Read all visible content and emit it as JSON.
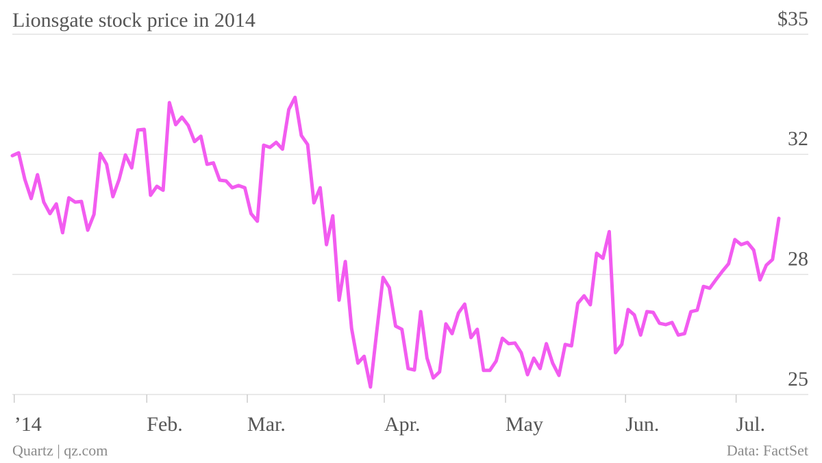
{
  "chart_data": {
    "type": "line",
    "title": "Lionsgate stock price in 2014",
    "source_left": "Quartz | qz.com",
    "source_right": "Data: FactSet",
    "color": "#f25cf0",
    "grid": true,
    "ylim": [
      25,
      35
    ],
    "yticks": [
      25,
      {
        "value": 28.333,
        "label": "28"
      },
      {
        "value": 31.667,
        "label": "32"
      },
      {
        "value": 35,
        "label": "$35"
      }
    ],
    "xlim": [
      0,
      122
    ],
    "xticks": [
      {
        "value": 0.3,
        "label": "’14"
      },
      {
        "value": 21.4,
        "label": "Feb."
      },
      {
        "value": 37.4,
        "label": "Mar."
      },
      {
        "value": 59.2,
        "label": "Apr."
      },
      {
        "value": 78.5,
        "label": "May"
      },
      {
        "value": 97.6,
        "label": "Jun."
      },
      {
        "value": 115.2,
        "label": "Jul."
      }
    ],
    "values": [
      31.63,
      31.71,
      30.97,
      30.44,
      31.1,
      30.34,
      30.02,
      30.29,
      29.49,
      30.46,
      30.34,
      30.36,
      29.56,
      30.0,
      31.69,
      31.39,
      30.49,
      30.97,
      31.65,
      31.29,
      32.34,
      32.36,
      30.53,
      30.78,
      30.67,
      33.1,
      32.49,
      32.7,
      32.47,
      32.02,
      32.17,
      31.39,
      31.43,
      30.95,
      30.93,
      30.74,
      30.8,
      30.74,
      30.02,
      29.81,
      31.92,
      31.86,
      32.0,
      31.81,
      32.91,
      33.25,
      32.19,
      31.94,
      30.32,
      30.74,
      29.16,
      29.96,
      27.62,
      28.69,
      26.83,
      25.87,
      26.06,
      25.21,
      26.75,
      28.25,
      27.97,
      26.9,
      26.81,
      25.72,
      25.68,
      27.3,
      26.01,
      25.46,
      25.63,
      26.96,
      26.69,
      27.26,
      27.51,
      26.58,
      26.81,
      25.67,
      25.67,
      25.93,
      26.56,
      26.41,
      26.43,
      26.16,
      25.55,
      26.01,
      25.72,
      26.41,
      25.87,
      25.53,
      26.39,
      26.35,
      27.53,
      27.74,
      27.49,
      28.92,
      28.78,
      29.52,
      26.16,
      26.39,
      27.36,
      27.21,
      26.65,
      27.3,
      27.28,
      26.98,
      26.94,
      27.0,
      26.65,
      26.69,
      27.3,
      27.34,
      28.0,
      27.95,
      28.19,
      28.42,
      28.63,
      29.3,
      29.16,
      29.22,
      29.01,
      28.18,
      28.59,
      28.75,
      29.89
    ]
  }
}
